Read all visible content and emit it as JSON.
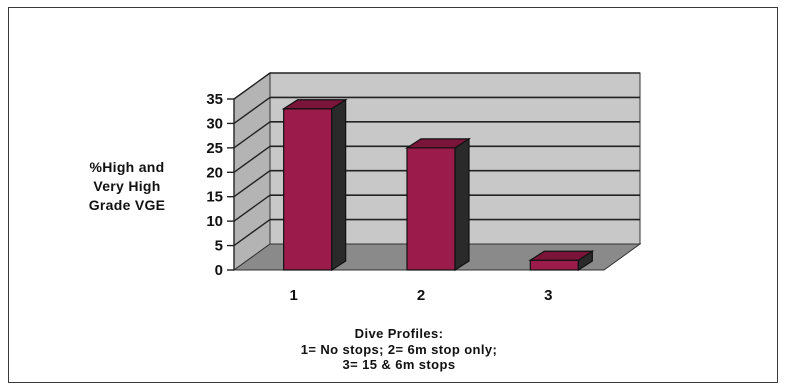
{
  "chart_data": {
    "type": "bar",
    "style": "3d",
    "categories": [
      "1",
      "2",
      "3"
    ],
    "values": [
      33,
      25,
      2
    ],
    "ylabel_lines": [
      "%High and",
      "Very High",
      "Grade VGE"
    ],
    "xlabel_lines": [
      "Dive Profiles:",
      "1= No stops; 2= 6m stop only;",
      "3= 15 & 6m stops"
    ],
    "ylim": [
      0,
      35
    ],
    "yticks": [
      0,
      5,
      10,
      15,
      20,
      25,
      30,
      35
    ],
    "grid": true,
    "colors": {
      "bar_front": "#9b1b4b",
      "bar_top": "#7a1438",
      "bar_side": "#2a2a2a",
      "wall": "#c8c8c8",
      "floor": "#8a8a8a",
      "gridline": "#222222"
    }
  }
}
